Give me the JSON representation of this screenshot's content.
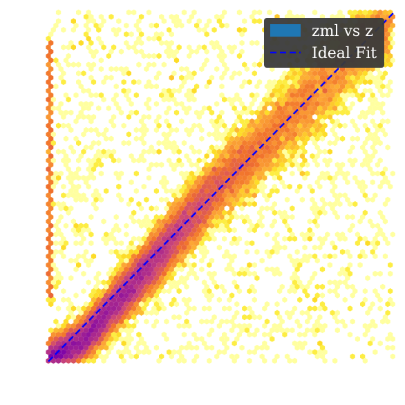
{
  "chart_data": {
    "type": "heatmap",
    "subtype": "hexbin-density",
    "title": "",
    "xlabel": "",
    "ylabel": "",
    "xlim": [
      0,
      1
    ],
    "ylim": [
      0,
      1
    ],
    "grid": false,
    "colormap": "plasma_r (yellow = low count, purple = high count)",
    "legend": {
      "placement": "top-right",
      "entries": [
        {
          "label": "zml vs z",
          "kind": "patch",
          "color": "#1f77b4"
        },
        {
          "label": "Ideal Fit",
          "kind": "line",
          "style": "dashed",
          "color": "#0000ff"
        }
      ]
    },
    "ideal_fit": {
      "x": [
        0,
        1
      ],
      "y": [
        0,
        1
      ]
    },
    "trend": {
      "x": [
        0,
        0.1,
        0.2,
        0.3,
        0.4,
        0.5,
        0.6,
        0.7,
        0.8,
        0.9,
        1.0
      ],
      "y": [
        0,
        0.06,
        0.17,
        0.28,
        0.4,
        0.51,
        0.6,
        0.7,
        0.8,
        0.91,
        1.0
      ]
    }
  }
}
